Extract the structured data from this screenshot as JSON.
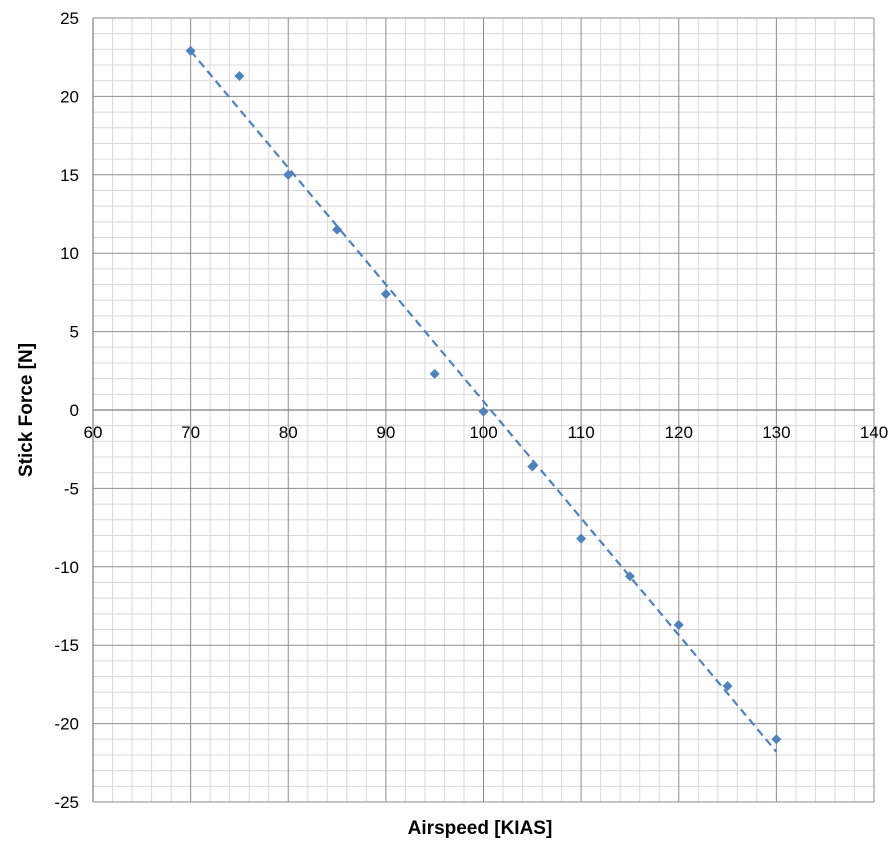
{
  "chart_data": {
    "type": "scatter",
    "title": "",
    "xlabel": "Airspeed [KIAS]",
    "ylabel": "Stick Force [N]",
    "xlim": [
      60,
      140
    ],
    "ylim": [
      -25,
      25
    ],
    "x_ticks": [
      60,
      70,
      80,
      90,
      100,
      110,
      120,
      130,
      140
    ],
    "y_ticks": [
      25,
      20,
      15,
      10,
      5,
      0,
      -5,
      -10,
      -15,
      -20,
      -25
    ],
    "grid": true,
    "minor_grid": true,
    "legend": "none",
    "series": [
      {
        "marker": "diamond",
        "color": "#4f81bd",
        "x": [
          70,
          75,
          80,
          85,
          90,
          95,
          100,
          105,
          110,
          115,
          120,
          125,
          130
        ],
        "y": [
          22.9,
          21.3,
          15.0,
          11.5,
          7.4,
          2.3,
          -0.1,
          -3.6,
          -8.2,
          -10.6,
          -13.7,
          -17.6,
          -21.0
        ]
      }
    ],
    "trendline": {
      "style": "dashed",
      "color": "#4f81bd",
      "x": [
        70,
        130
      ],
      "y": [
        22.9,
        -21.8
      ]
    }
  }
}
